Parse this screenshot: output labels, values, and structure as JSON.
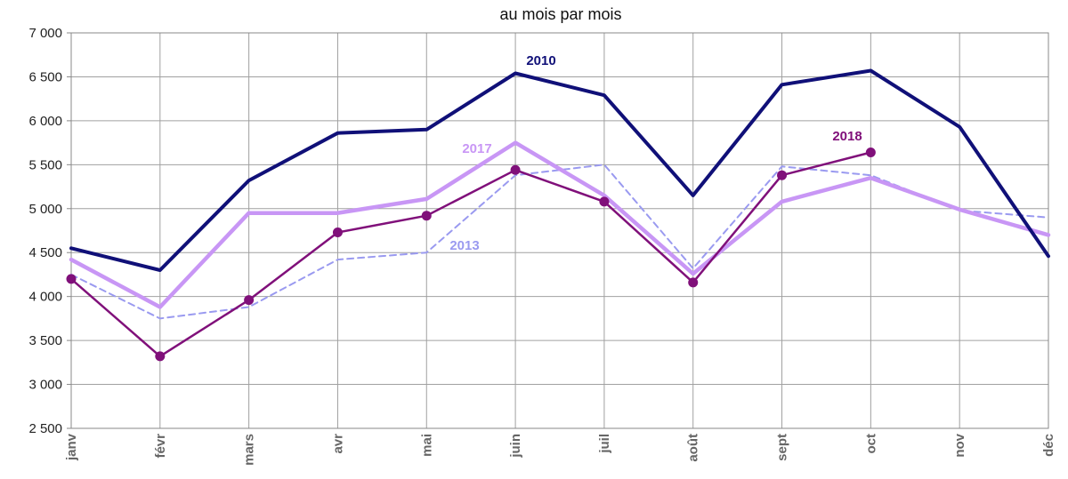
{
  "chart_data": {
    "type": "line",
    "subtitle": "au mois par mois",
    "categories": [
      "janv",
      "févr",
      "mars",
      "avr",
      "mai",
      "juin",
      "juil",
      "août",
      "sept",
      "oct",
      "nov",
      "déc"
    ],
    "ylim": [
      2500,
      7000
    ],
    "yticks": [
      2500,
      3000,
      3500,
      4000,
      4500,
      5000,
      5500,
      6000,
      6500,
      7000
    ],
    "ytick_labels": [
      "2 500",
      "3 000",
      "3 500",
      "4 000",
      "4 500",
      "5 000",
      "5 500",
      "6 000",
      "6 500",
      "7 000"
    ],
    "grid": true,
    "series": [
      {
        "name": "2013",
        "color": "#9a9af0",
        "style": "dashed",
        "values": [
          4250,
          3750,
          3880,
          4420,
          4500,
          5380,
          5500,
          4320,
          5480,
          5380,
          4980,
          4900
        ]
      },
      {
        "name": "2017",
        "color": "#c896f5",
        "style": "thick",
        "values": [
          4420,
          3880,
          4950,
          4950,
          5110,
          5750,
          5150,
          4260,
          5080,
          5350,
          4990,
          4700
        ]
      },
      {
        "name": "2010",
        "color": "#101078",
        "style": "solid",
        "values": [
          4550,
          4300,
          5320,
          5860,
          5900,
          6540,
          6290,
          5150,
          6410,
          6570,
          5930,
          4460
        ]
      },
      {
        "name": "2018",
        "color": "#80107a",
        "style": "markers",
        "values": [
          4200,
          3320,
          3960,
          4730,
          4920,
          5440,
          5080,
          4160,
          5380,
          5640,
          null,
          null
        ]
      }
    ]
  }
}
